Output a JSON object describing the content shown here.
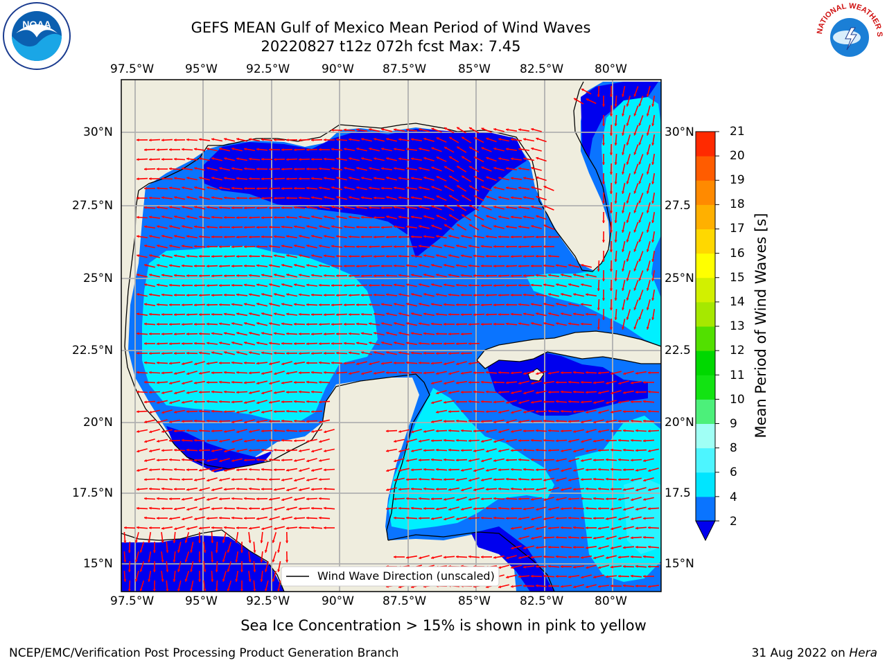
{
  "title_line1": "GEFS MEAN Gulf of Mexico Mean Period of Wind Waves",
  "title_line2": "20220827 t12z 072h fcst   Max: 7.45",
  "x_ticks": [
    "97.5°W",
    "95°W",
    "92.5°W",
    "90°W",
    "87.5°W",
    "85°W",
    "82.5°W",
    "80°W"
  ],
  "y_ticks": [
    "30°N",
    "27.5°N",
    "25°N",
    "22.5°N",
    "20°N",
    "17.5°N",
    "15°N"
  ],
  "y_ticks_right": [
    "30°N",
    "27.5",
    "25°N",
    "22.5",
    "20°N",
    "17.5",
    "15°N"
  ],
  "legend_label": "Wind Wave Direction (unscaled)",
  "colorbar": {
    "label": "Mean Period of Wind Waves [s]",
    "ticks": [
      "2",
      "4",
      "6",
      "8",
      "9",
      "10",
      "11",
      "12",
      "13",
      "14",
      "15",
      "16",
      "17",
      "18",
      "19",
      "20",
      "21"
    ],
    "levels": [
      2,
      4,
      6,
      8,
      9,
      10,
      11,
      12,
      13,
      14,
      15,
      16,
      17,
      18,
      19,
      20,
      21
    ],
    "colors": [
      "#0a74ff",
      "#00e5ff",
      "#4df5ff",
      "#a0fff5",
      "#4cf07a",
      "#12e312",
      "#00d800",
      "#52e000",
      "#a6e800",
      "#d2f000",
      "#ffff00",
      "#ffd800",
      "#ffb000",
      "#ff8a00",
      "#ff5c00",
      "#ff2a00"
    ],
    "extend_color": "#0000ee"
  },
  "note": "Sea Ice Concentration > 15% is shown in pink to yellow",
  "credit_left": "NCEP/EMC/Verification Post Processing Product Generation Branch",
  "credit_date": "31 Aug 2022 on",
  "credit_machine": "Hera",
  "logos": {
    "noaa": "NOAA",
    "nws": "NATIONAL WEATHER SERVICE"
  },
  "map_colors": {
    "land": "#efedde",
    "band_2_4": "#0a74ff",
    "band_4_6": "#00f0ff",
    "below_2": "#0000ee",
    "arrow": "#ff0000",
    "grid": "#b0b0b0"
  },
  "map_extent": {
    "lon": [
      -98.3,
      -78.5
    ],
    "lat": [
      14,
      31.7
    ]
  }
}
